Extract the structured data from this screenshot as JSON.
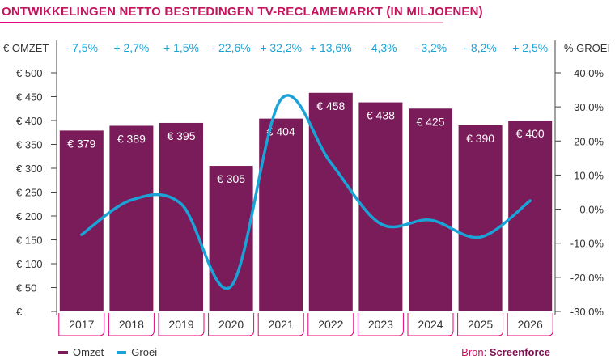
{
  "chart_data": {
    "type": "bar",
    "title": "ONTWIKKELINGEN NETTO BESTEDINGEN TV-RECLAMEMARKT (IN MILJOENEN)",
    "categories": [
      "2017",
      "2018",
      "2019",
      "2020",
      "2021",
      "2022",
      "2023",
      "2024",
      "2025",
      "2026"
    ],
    "series": [
      {
        "name": "Omzet",
        "type": "bar",
        "axis": "left",
        "color": "#7a1b5a",
        "values": [
          379,
          389,
          395,
          305,
          404,
          458,
          438,
          425,
          390,
          400
        ],
        "labels": [
          "€ 379",
          "€ 389",
          "€ 395",
          "€ 305",
          "€ 404",
          "€ 458",
          "€ 438",
          "€ 425",
          "€ 390",
          "€ 400"
        ]
      },
      {
        "name": "Groei",
        "type": "line",
        "axis": "right",
        "color": "#1aa3d6",
        "values": [
          -7.5,
          2.7,
          1.5,
          -22.6,
          32.2,
          13.6,
          -4.3,
          -3.2,
          -8.2,
          2.5
        ],
        "labels": [
          "- 7,5%",
          "+ 2,7%",
          "+ 1,5%",
          "- 22,6%",
          "+ 32,2%",
          "+ 13,6%",
          "- 4,3%",
          "- 3,2%",
          "- 8,2%",
          "+ 2,5%"
        ]
      }
    ],
    "left_axis": {
      "title": "€ OMZET",
      "ylim": [
        0,
        500
      ],
      "ticks": [
        0,
        50,
        100,
        150,
        200,
        250,
        300,
        350,
        400,
        450,
        500
      ],
      "tick_labels": [
        "€",
        "€ 50",
        "€ 100",
        "€ 150",
        "€ 200",
        "€ 250",
        "€ 300",
        "€ 350",
        "€ 400",
        "€ 450",
        "€ 500"
      ]
    },
    "right_axis": {
      "title": "% GROEI",
      "ylim": [
        -30,
        40
      ],
      "ticks": [
        -30,
        -20,
        -10,
        0,
        10,
        20,
        30,
        40
      ],
      "tick_labels": [
        "-30,0%",
        "-20,0%",
        "-10,0%",
        "0,0%",
        "10,0%",
        "20,0%",
        "30,0%",
        "40,0%"
      ]
    },
    "legend": [
      "Omzet",
      "Groei"
    ],
    "legend_position": "bottom-left",
    "grid": false
  },
  "source": {
    "prefix": "Bron: ",
    "brand": "Screenforce"
  }
}
